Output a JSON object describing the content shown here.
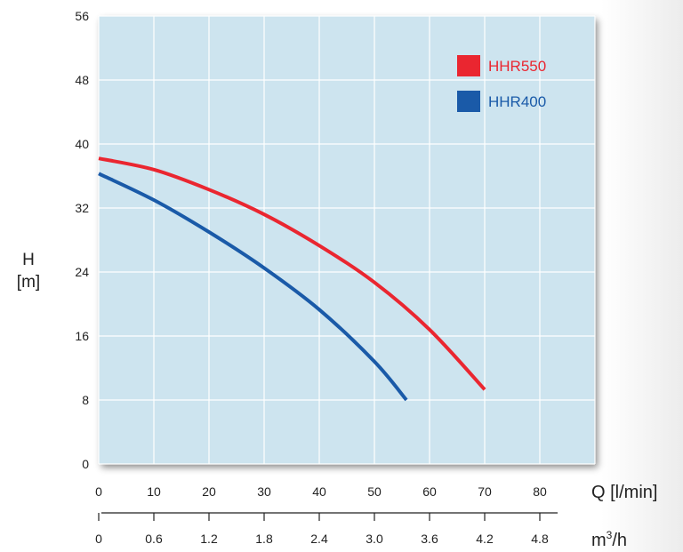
{
  "chart_data": {
    "type": "line",
    "xlabel": "Q [l/min]",
    "xlabel2": "m3/h",
    "ylabel": [
      "H",
      "[m]"
    ],
    "xlim": [
      0,
      90
    ],
    "ylim": [
      0,
      56
    ],
    "x_ticks": [
      "0",
      "10",
      "20",
      "30",
      "40",
      "50",
      "60",
      "70",
      "80"
    ],
    "x2_ticks": [
      "0",
      "0.6",
      "1.2",
      "1.8",
      "2.4",
      "3.0",
      "3.6",
      "4.2",
      "4.8"
    ],
    "y_ticks": [
      "0",
      "8",
      "16",
      "24",
      "32",
      "40",
      "48",
      "56"
    ],
    "grid": true,
    "legend_position": "top-right",
    "plot_bg": "#cde4ef",
    "series": [
      {
        "name": "HHR550",
        "color": "#ea2630",
        "x": [
          0,
          10,
          20,
          30,
          40,
          50,
          60,
          70
        ],
        "y": [
          38.2,
          36.8,
          34.3,
          31.2,
          27.3,
          22.7,
          16.8,
          9.3
        ]
      },
      {
        "name": "HHR400",
        "color": "#1a5aa8",
        "x": [
          0,
          10,
          20,
          30,
          40,
          50,
          55.8
        ],
        "y": [
          36.3,
          33.0,
          29.0,
          24.5,
          19.3,
          12.8,
          8.0
        ]
      }
    ]
  }
}
